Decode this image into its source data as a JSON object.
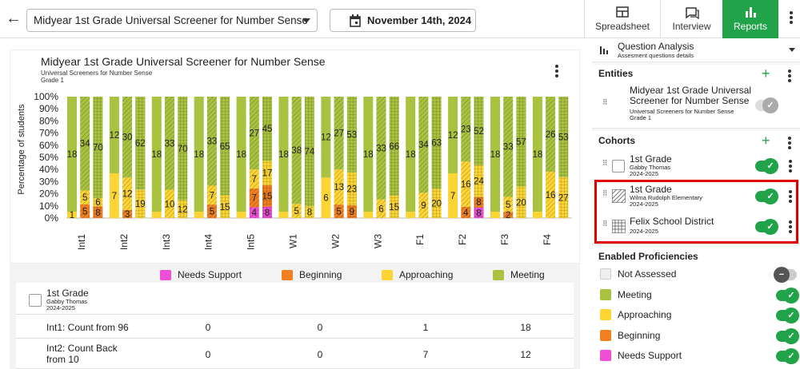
{
  "header": {
    "assessment": "Midyear 1st Grade Universal Screener for Number Sense",
    "date": "November 14th, 2024"
  },
  "tabs": [
    {
      "label": "Spreadsheet",
      "icon": "table-icon"
    },
    {
      "label": "Interview",
      "icon": "chat-icon"
    },
    {
      "label": "Reports",
      "icon": "bar-chart-icon",
      "active": true
    }
  ],
  "chart_card": {
    "title": "Midyear 1st Grade Universal Screener for Number Sense",
    "subtitle1": "Universal Screeners for Number Sense",
    "subtitle2": "Grade 1"
  },
  "colors": {
    "meeting": "#a9c23f",
    "approaching": "#fcd535",
    "beginning": "#f08020",
    "needs": "#ee4fd6",
    "accent": "#21a34a",
    "highlight": "#e00000"
  },
  "chart_data": {
    "type": "bar",
    "ylabel": "Percentage of students",
    "yticks": [
      "0%",
      "10%",
      "20%",
      "30%",
      "40%",
      "50%",
      "60%",
      "70%",
      "80%",
      "90%",
      "100%"
    ],
    "categories": [
      "Int1",
      "Int2",
      "Int3",
      "Int4",
      "Int5",
      "W1",
      "W2",
      "W3",
      "F1",
      "F2",
      "F3",
      "F4"
    ],
    "legend": [
      "Needs Support",
      "Beginning",
      "Approaching",
      "Meeting"
    ],
    "groups": [
      {
        "name": "1st Grade (Gabby Thomas)",
        "pattern": "solid",
        "needs": [
          0,
          0,
          0,
          0,
          0,
          0,
          0,
          0,
          0,
          0,
          0,
          0
        ],
        "beginning": [
          0,
          0,
          0,
          0,
          0,
          0,
          0,
          0,
          0,
          0,
          0,
          0
        ],
        "approaching": [
          1,
          7,
          1,
          1,
          1,
          1,
          6,
          1,
          1,
          7,
          1,
          1
        ],
        "meeting": [
          18,
          12,
          18,
          18,
          18,
          18,
          12,
          18,
          18,
          12,
          18,
          18
        ]
      },
      {
        "name": "Wilma Rudolph Elementary",
        "pattern": "hatched",
        "needs": [
          0,
          0,
          0,
          0,
          4,
          0,
          0,
          0,
          0,
          0,
          0,
          0
        ],
        "beginning": [
          5,
          3,
          0,
          5,
          7,
          0,
          5,
          0,
          0,
          4,
          2,
          0
        ],
        "approaching": [
          5,
          12,
          10,
          7,
          7,
          5,
          13,
          6,
          9,
          16,
          5,
          16
        ],
        "meeting": [
          34,
          30,
          33,
          33,
          27,
          38,
          27,
          33,
          34,
          23,
          33,
          26
        ]
      },
      {
        "name": "Felix School District",
        "pattern": "grid",
        "needs": [
          0,
          0,
          0,
          0,
          8,
          0,
          0,
          0,
          0,
          8,
          0,
          0
        ],
        "beginning": [
          8,
          0,
          0,
          0,
          15,
          0,
          9,
          0,
          0,
          8,
          0,
          0
        ],
        "approaching": [
          6,
          19,
          12,
          15,
          17,
          8,
          23,
          15,
          20,
          24,
          20,
          27
        ],
        "meeting": [
          70,
          62,
          70,
          65,
          45,
          74,
          53,
          66,
          63,
          52,
          57,
          53
        ]
      }
    ],
    "labels": [
      {
        "s": [
          "18",
          "1"
        ],
        "w": [
          "34",
          "5",
          "5"
        ],
        "f": [
          "70",
          "6",
          "8"
        ]
      },
      {
        "s": [
          "12",
          "7"
        ],
        "w": [
          "30",
          "12",
          "3"
        ],
        "f": [
          "62",
          "19"
        ]
      },
      {
        "s": [
          "18"
        ],
        "w": [
          "33",
          "10"
        ],
        "f": [
          "70",
          "12"
        ]
      },
      {
        "s": [
          "18"
        ],
        "w": [
          "33",
          "7",
          "5"
        ],
        "f": [
          "65",
          "15"
        ]
      },
      {
        "s": [
          "18"
        ],
        "w": [
          "27",
          "7",
          "7",
          "4"
        ],
        "f": [
          "45",
          "17",
          "15",
          "8"
        ]
      },
      {
        "s": [
          "18"
        ],
        "w": [
          "38",
          "5"
        ],
        "f": [
          "74",
          "8"
        ]
      },
      {
        "s": [
          "12",
          "6"
        ],
        "w": [
          "27",
          "13",
          "5"
        ],
        "f": [
          "53",
          "23",
          "9"
        ]
      },
      {
        "s": [
          "18"
        ],
        "w": [
          "33",
          "6"
        ],
        "f": [
          "66",
          "15"
        ]
      },
      {
        "s": [
          "18"
        ],
        "w": [
          "34",
          "9"
        ],
        "f": [
          "63",
          "20"
        ]
      },
      {
        "s": [
          "12",
          "7"
        ],
        "w": [
          "23",
          "16",
          "4"
        ],
        "f": [
          "52",
          "24",
          "8",
          "8"
        ]
      },
      {
        "s": [
          "18"
        ],
        "w": [
          "33",
          "5",
          "2"
        ],
        "f": [
          "57",
          "20"
        ]
      },
      {
        "s": [
          "18"
        ],
        "w": [
          "26",
          "16"
        ],
        "f": [
          "53",
          "27"
        ]
      }
    ]
  },
  "table": {
    "group": {
      "name": "1st Grade",
      "teacher": "Gabby Thomas",
      "year": "2024-2025"
    },
    "rows": [
      {
        "label": "Int1: Count from 96",
        "c": [
          "0",
          "0",
          "1",
          "18"
        ]
      },
      {
        "label": "Int2: Count Back from 10",
        "c": [
          "0",
          "0",
          "7",
          "12"
        ]
      }
    ]
  },
  "panel": {
    "qa_title": "Question Analysis",
    "qa_sub": "Assesment questions details",
    "entities_title": "Entities",
    "entity": {
      "name": "Midyear 1st Grade Universal Screener for Number Sense",
      "sub": "Universal Screeners for Number Sense",
      "sub2": "Grade 1"
    },
    "cohorts_title": "Cohorts",
    "cohorts": [
      {
        "name": "1st Grade",
        "sub": "Gabby Thomas",
        "year": "2024-2025"
      },
      {
        "name": "1st Grade",
        "sub": "Wilma Rudolph Elementary",
        "year": "2024-2025"
      },
      {
        "name": "Felix School District",
        "sub": "",
        "year": "2024-2025"
      }
    ],
    "prof_title": "Enabled Proficiencies",
    "profs": [
      {
        "name": "Not Assessed",
        "color": "#eeeeee",
        "on": false
      },
      {
        "name": "Meeting",
        "color": "#a9c23f",
        "on": true
      },
      {
        "name": "Approaching",
        "color": "#fcd535",
        "on": true
      },
      {
        "name": "Beginning",
        "color": "#f08020",
        "on": true
      },
      {
        "name": "Needs Support",
        "color": "#ee4fd6",
        "on": true
      }
    ]
  }
}
